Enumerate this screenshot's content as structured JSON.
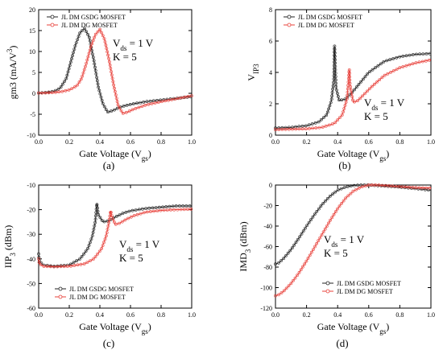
{
  "colors": {
    "gsdg": "#222222",
    "dg": "#e8403a"
  },
  "chart_data": [
    {
      "type": "line",
      "panel": "(a)",
      "xlabel_main": "Gate Voltage (V",
      "xlabel_sub": "gs",
      "xlabel_end": ")",
      "ylabel": "gm3 (mA/V",
      "ylabel_sup": "3",
      "ylabel_end": ")",
      "xlim": [
        0.0,
        1.0
      ],
      "ylim": [
        -10,
        20
      ],
      "xticks": [
        "0.0",
        "0.2",
        "0.4",
        "0.6",
        "0.8",
        "1.0"
      ],
      "yticks": [
        "-10",
        "-5",
        "0",
        "5",
        "10",
        "15",
        "20"
      ],
      "legend": [
        "JL DM GSDG MOSFET",
        "JL DM DG MOSFET"
      ],
      "legend_position": "top-left",
      "annotation": [
        "V",
        "ds",
        " = 1 V",
        "K = 5"
      ],
      "series": [
        {
          "name": "JL DM GSDG MOSFET",
          "color": "#222222",
          "x": [
            0,
            0.05,
            0.1,
            0.14,
            0.18,
            0.21,
            0.24,
            0.27,
            0.3,
            0.33,
            0.36,
            0.39,
            0.42,
            0.45,
            0.48,
            0.52,
            0.56,
            0.62,
            0.7,
            0.8,
            0.9,
            1.0
          ],
          "y": [
            0.1,
            0.2,
            0.5,
            1.2,
            3.5,
            7.5,
            11.5,
            14.5,
            15.5,
            13.5,
            8,
            1.5,
            -2.5,
            -4.5,
            -4.2,
            -3.5,
            -3,
            -2.5,
            -2,
            -1.6,
            -1.2,
            -0.8
          ]
        },
        {
          "name": "JL DM DG MOSFET",
          "color": "#e8403a",
          "x": [
            0,
            0.05,
            0.1,
            0.15,
            0.2,
            0.25,
            0.28,
            0.31,
            0.34,
            0.37,
            0.4,
            0.43,
            0.46,
            0.49,
            0.52,
            0.55,
            0.58,
            0.62,
            0.7,
            0.8,
            0.9,
            1.0
          ],
          "y": [
            0.05,
            0.1,
            0.2,
            0.4,
            0.8,
            1.8,
            3.5,
            7,
            11,
            14,
            15.3,
            13,
            8,
            2,
            -3,
            -4.8,
            -4.5,
            -3.8,
            -2.8,
            -2,
            -1.3,
            -0.6
          ]
        }
      ]
    },
    {
      "type": "line",
      "panel": "(b)",
      "xlabel_main": "Gate Voltage (V",
      "xlabel_sub": "gs",
      "xlabel_end": ")",
      "ylabel": "V",
      "ylabel_sub": "IP3",
      "xlim": [
        0.0,
        1.0
      ],
      "ylim": [
        0,
        8
      ],
      "xticks": [
        "0.0",
        "0.2",
        "0.4",
        "0.6",
        "0.8",
        "1.0"
      ],
      "yticks": [
        "0",
        "2",
        "4",
        "6",
        "8"
      ],
      "legend": [
        "JL DM GSDG MOSFET",
        "JL DM DG MOSFET"
      ],
      "legend_position": "top-left",
      "annotation": [
        "V",
        "ds",
        " = 1 V",
        "K = 5"
      ],
      "series": [
        {
          "name": "JL DM GSDG MOSFET",
          "color": "#222222",
          "x": [
            0,
            0.1,
            0.2,
            0.28,
            0.33,
            0.36,
            0.375,
            0.38,
            0.39,
            0.41,
            0.45,
            0.5,
            0.55,
            0.6,
            0.7,
            0.8,
            0.9,
            1.0
          ],
          "y": [
            0.45,
            0.5,
            0.6,
            0.85,
            1.3,
            2.2,
            3.5,
            5.7,
            3,
            2.2,
            2.3,
            2.8,
            3.4,
            4,
            4.7,
            5,
            5.15,
            5.2
          ]
        },
        {
          "name": "JL DM DG MOSFET",
          "color": "#e8403a",
          "x": [
            0,
            0.1,
            0.2,
            0.3,
            0.38,
            0.43,
            0.46,
            0.47,
            0.475,
            0.48,
            0.5,
            0.53,
            0.57,
            0.62,
            0.7,
            0.8,
            0.9,
            1.0
          ],
          "y": [
            0.35,
            0.38,
            0.4,
            0.5,
            0.75,
            1.3,
            2.3,
            3.5,
            4.2,
            3.2,
            2.1,
            2.2,
            2.6,
            3.1,
            3.8,
            4.3,
            4.6,
            4.8
          ]
        }
      ]
    },
    {
      "type": "line",
      "panel": "(c)",
      "xlabel_main": "Gate Voltage (V",
      "xlabel_sub": "gs",
      "xlabel_end": ")",
      "ylabel": "IIP",
      "ylabel_sub": "3",
      "ylabel_end": " (dBm)",
      "xlim": [
        0.0,
        1.0
      ],
      "ylim": [
        -60,
        -10
      ],
      "xticks": [
        "0.0",
        "0.2",
        "0.4",
        "0.6",
        "0.8",
        "1.0"
      ],
      "yticks": [
        "-60",
        "-50",
        "-40",
        "-30",
        "-20",
        "-10"
      ],
      "legend": [
        "JL DM GSDG MOSFET",
        "JL DM DG MOSFET"
      ],
      "legend_position": "bottom-left",
      "annotation": [
        "V",
        "ds",
        " = 1 V",
        "K = 5"
      ],
      "series": [
        {
          "name": "JL DM GSDG MOSFET",
          "color": "#222222",
          "x": [
            0,
            0.005,
            0.03,
            0.1,
            0.2,
            0.27,
            0.32,
            0.35,
            0.37,
            0.38,
            0.39,
            0.42,
            0.46,
            0.5,
            0.55,
            0.6,
            0.7,
            0.8,
            0.9,
            1.0
          ],
          "y": [
            -38,
            -41,
            -42.5,
            -43,
            -42.5,
            -40,
            -36,
            -31,
            -25,
            -17.5,
            -22,
            -25,
            -24.5,
            -23,
            -21.5,
            -20.5,
            -19.5,
            -19,
            -18.5,
            -18.5
          ]
        },
        {
          "name": "JL DM DG MOSFET",
          "color": "#e8403a",
          "x": [
            0,
            0.005,
            0.03,
            0.1,
            0.2,
            0.3,
            0.36,
            0.41,
            0.44,
            0.46,
            0.47,
            0.48,
            0.5,
            0.53,
            0.57,
            0.62,
            0.7,
            0.8,
            0.9,
            1.0
          ],
          "y": [
            -40,
            -42,
            -43,
            -43.2,
            -43,
            -42,
            -40,
            -36,
            -31,
            -25,
            -20.5,
            -23,
            -26,
            -25.5,
            -24,
            -22.5,
            -21,
            -20.3,
            -20,
            -19.8
          ]
        }
      ]
    },
    {
      "type": "line",
      "panel": "(d)",
      "xlabel_main": "Gate Voltage (V",
      "xlabel_sub": "gs",
      "xlabel_end": ")",
      "ylabel": "IMD",
      "ylabel_sub": "3",
      "ylabel_end": " (dBm)",
      "xlim": [
        0.0,
        1.0
      ],
      "ylim": [
        -120,
        0
      ],
      "xticks": [
        "0.0",
        "0.2",
        "0.4",
        "0.6",
        "0.8",
        "1.0"
      ],
      "yticks": [
        "-120",
        "-100",
        "-80",
        "-60",
        "-40",
        "-20",
        "0"
      ],
      "legend": [
        "JL DM GSDG MOSFET",
        "JL DM DG MOSFET"
      ],
      "legend_position": "bottom-right",
      "annotation": [
        "V",
        "ds",
        " = 1 V",
        "K = 5"
      ],
      "series": [
        {
          "name": "JL DM GSDG MOSFET",
          "color": "#222222",
          "x": [
            0,
            0.02,
            0.05,
            0.1,
            0.15,
            0.2,
            0.25,
            0.3,
            0.35,
            0.4,
            0.45,
            0.5,
            0.55,
            0.6,
            0.65,
            0.7,
            0.8,
            0.9,
            1.0
          ],
          "y": [
            -77,
            -76,
            -72,
            -63,
            -52,
            -40,
            -29,
            -19,
            -11,
            -5,
            -2,
            -0.5,
            0,
            0,
            -0.5,
            -1,
            -2,
            -3.5,
            -5
          ]
        },
        {
          "name": "JL DM DG MOSFET",
          "color": "#e8403a",
          "x": [
            0,
            0.02,
            0.05,
            0.1,
            0.15,
            0.2,
            0.25,
            0.3,
            0.35,
            0.4,
            0.45,
            0.5,
            0.55,
            0.6,
            0.65,
            0.7,
            0.8,
            0.9,
            1.0
          ],
          "y": [
            -108,
            -107,
            -104,
            -96,
            -86,
            -74,
            -61,
            -48,
            -35,
            -23,
            -13,
            -6,
            -2,
            0,
            0,
            -0.5,
            -1.5,
            -2.5,
            -3
          ]
        }
      ]
    }
  ]
}
